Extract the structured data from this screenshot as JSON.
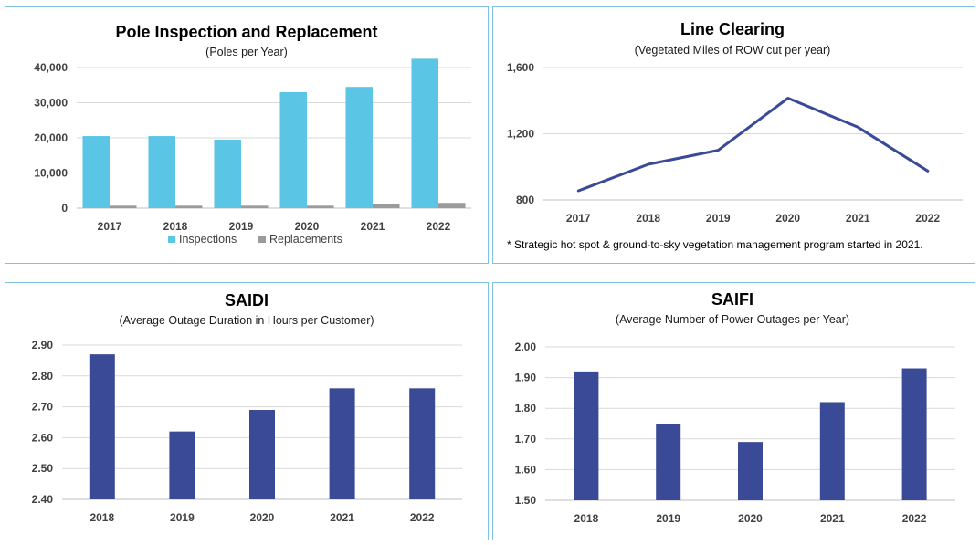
{
  "colors": {
    "inspections": "#5bc5e6",
    "replacements": "#9b9b9b",
    "navy": "#3a4a96"
  },
  "chart_data": [
    {
      "type": "bar",
      "title": "Pole Inspection and Replacement",
      "subtitle": "(Poles per Year)",
      "xlabel": "",
      "ylabel": "",
      "categories": [
        "2017",
        "2018",
        "2019",
        "2020",
        "2021",
        "2022"
      ],
      "series": [
        {
          "name": "Inspections",
          "values": [
            20500,
            20500,
            19500,
            33000,
            34500,
            42500
          ]
        },
        {
          "name": "Replacements",
          "values": [
            700,
            700,
            700,
            700,
            1200,
            1500
          ]
        }
      ],
      "ylim": [
        0,
        40000
      ],
      "yticks": [
        0,
        10000,
        20000,
        30000,
        40000
      ],
      "ytick_labels": [
        "0",
        "10,000",
        "20,000",
        "30,000",
        "40,000"
      ],
      "grid": true,
      "legend": "bottom"
    },
    {
      "type": "line",
      "title": "Line Clearing",
      "subtitle": "(Vegetated Miles of ROW cut per year)",
      "xlabel": "",
      "ylabel": "",
      "categories": [
        "2017",
        "2018",
        "2019",
        "2020",
        "2021",
        "2022"
      ],
      "series": [
        {
          "name": "Vegetated Miles",
          "values": [
            855,
            1015,
            1100,
            1415,
            1240,
            975
          ]
        }
      ],
      "ylim": [
        800,
        1600
      ],
      "yticks": [
        800,
        1200,
        1600
      ],
      "ytick_labels": [
        "800",
        "1,200",
        "1,600"
      ],
      "grid": true,
      "note": "* Strategic hot spot & ground-to-sky vegetation management program started in 2021."
    },
    {
      "type": "bar",
      "title": "SAIDI",
      "subtitle": "(Average Outage Duration in Hours per Customer)",
      "xlabel": "",
      "ylabel": "",
      "categories": [
        "2018",
        "2019",
        "2020",
        "2021",
        "2022"
      ],
      "series": [
        {
          "name": "SAIDI",
          "values": [
            2.87,
            2.62,
            2.69,
            2.76,
            2.76
          ]
        }
      ],
      "ylim": [
        2.4,
        2.9
      ],
      "yticks": [
        2.4,
        2.5,
        2.6,
        2.7,
        2.8,
        2.9
      ],
      "ytick_labels": [
        "2.40",
        "2.50",
        "2.60",
        "2.70",
        "2.80",
        "2.90"
      ],
      "grid": true
    },
    {
      "type": "bar",
      "title": "SAIFI",
      "subtitle": "(Average Number of Power Outages per Year)",
      "xlabel": "",
      "ylabel": "",
      "categories": [
        "2018",
        "2019",
        "2020",
        "2021",
        "2022"
      ],
      "series": [
        {
          "name": "SAIFI",
          "values": [
            1.92,
            1.75,
            1.69,
            1.82,
            1.93
          ]
        }
      ],
      "ylim": [
        1.5,
        2.0
      ],
      "yticks": [
        1.5,
        1.6,
        1.7,
        1.8,
        1.9,
        2.0
      ],
      "ytick_labels": [
        "1.50",
        "1.60",
        "1.70",
        "1.80",
        "1.90",
        "2.00"
      ],
      "grid": true
    }
  ]
}
